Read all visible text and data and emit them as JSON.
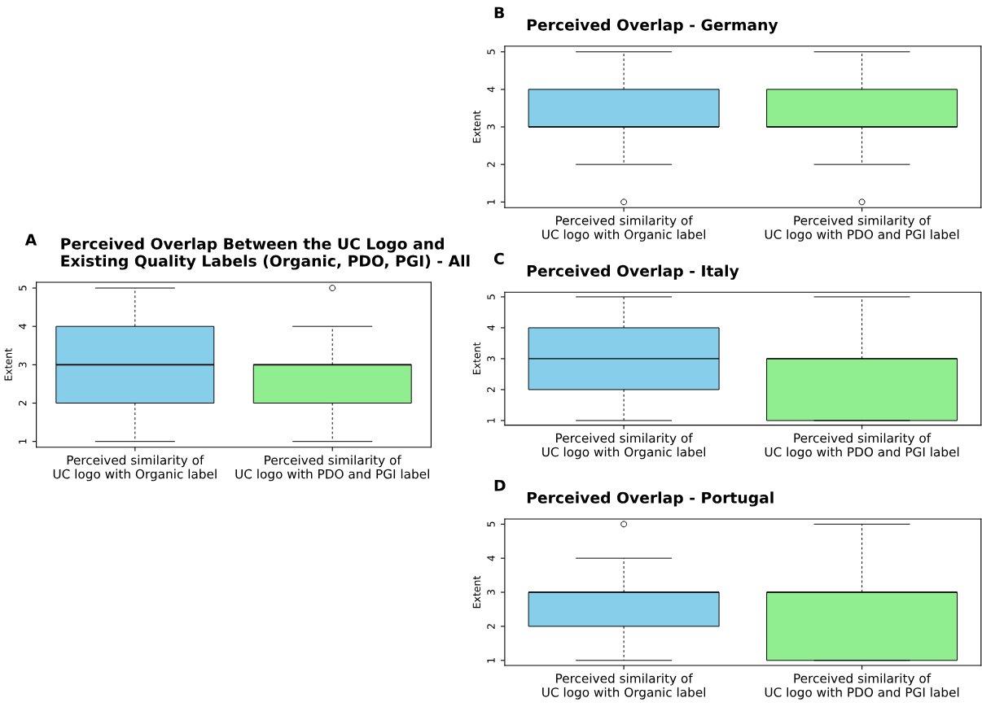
{
  "chart_data": [
    {
      "type": "box",
      "title": "Perceived Overlap Between the UC Logo and\nExisting Quality Labels (Organic, PDO, PGI) - All",
      "ylabel": "Extent",
      "annotations": [
        "A"
      ],
      "categories": [
        "Perceived similarity of\nUC logo with Organic label",
        "Perceived similarity of\nUC logo with PDO and PGI label"
      ],
      "colors": [
        "#87ceeb",
        "#90ee90"
      ],
      "ylim": [
        0.85,
        5.15
      ],
      "yticks": [
        1,
        2,
        3,
        4,
        5
      ],
      "boxes": [
        {
          "low": 1,
          "q1": 2,
          "median": 3,
          "q3": 4,
          "high": 5
        },
        {
          "low": 1,
          "q1": 2,
          "median": 3,
          "q3": 3,
          "high": 4,
          "outliers": [
            5
          ]
        }
      ]
    },
    {
      "type": "box",
      "title": "Perceived Overlap - Germany",
      "ylabel": "Extent",
      "annotations": [
        "B"
      ],
      "categories": [
        "Perceived similarity of\nUC logo with Organic label",
        "Perceived similarity of\nUC logo with PDO and PGI label"
      ],
      "colors": [
        "#87ceeb",
        "#90ee90"
      ],
      "ylim": [
        0.85,
        5.15
      ],
      "yticks": [
        1,
        2,
        3,
        4,
        5
      ],
      "boxes": [
        {
          "low": 2,
          "q1": 3,
          "median": 3,
          "q3": 4,
          "high": 5,
          "outliers": [
            1
          ]
        },
        {
          "low": 2,
          "q1": 3,
          "median": 3,
          "q3": 4,
          "high": 5,
          "outliers": [
            1
          ]
        }
      ]
    },
    {
      "type": "box",
      "title": "Perceived Overlap - Italy",
      "ylabel": "Extent",
      "annotations": [
        "C"
      ],
      "categories": [
        "Perceived similarity of\nUC logo with Organic label",
        "Perceived similarity of\nUC logo with PDO and PGI label"
      ],
      "colors": [
        "#87ceeb",
        "#90ee90"
      ],
      "ylim": [
        0.85,
        5.15
      ],
      "yticks": [
        1,
        2,
        3,
        4,
        5
      ],
      "boxes": [
        {
          "low": 1,
          "q1": 2,
          "median": 3,
          "q3": 4,
          "high": 5
        },
        {
          "low": 1,
          "q1": 1,
          "median": 3,
          "q3": 3,
          "high": 5
        }
      ]
    },
    {
      "type": "box",
      "title": "Perceived Overlap - Portugal",
      "ylabel": "Extent",
      "annotations": [
        "D"
      ],
      "categories": [
        "Perceived similarity of\nUC logo with Organic label",
        "Perceived similarity of\nUC logo with PDO and PGI label"
      ],
      "colors": [
        "#87ceeb",
        "#90ee90"
      ],
      "ylim": [
        0.85,
        5.15
      ],
      "yticks": [
        1,
        2,
        3,
        4,
        5
      ],
      "boxes": [
        {
          "low": 1,
          "q1": 2,
          "median": 3,
          "q3": 3,
          "high": 4,
          "outliers": [
            5
          ]
        },
        {
          "low": 1,
          "q1": 1,
          "median": 3,
          "q3": 3,
          "high": 5
        }
      ]
    }
  ]
}
